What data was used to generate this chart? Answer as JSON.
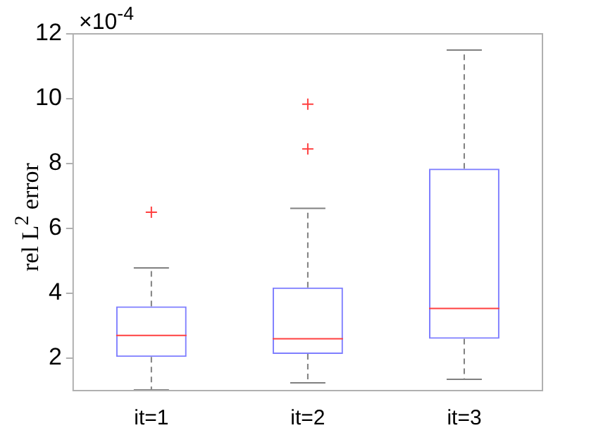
{
  "chart_data": {
    "type": "box",
    "ylabel": "rel L$^{2}$ error",
    "annotations": [
      "×10$^{-4}$"
    ],
    "categories": [
      "it=1",
      "it=2",
      "it=3"
    ],
    "series": [
      {
        "color": "#7f7fff",
        "boxes": [
          {
            "low": 1.02,
            "q1": 2.04,
            "median": 2.7,
            "q3": 3.6,
            "high": 4.78,
            "outliers": [
              6.5
            ]
          },
          {
            "low": 1.24,
            "q1": 2.13,
            "median": 2.6,
            "q3": 4.18,
            "high": 6.62,
            "outliers": [
              8.45,
              9.83
            ]
          },
          {
            "low": 1.35,
            "q1": 2.6,
            "median": 3.53,
            "q3": 7.84,
            "high": 11.5
          }
        ]
      }
    ],
    "ylim": [
      1,
      12
    ],
    "yticks": [
      2,
      4,
      6,
      8,
      10,
      12
    ],
    "grid": false,
    "legend": false,
    "marker": "cross"
  }
}
